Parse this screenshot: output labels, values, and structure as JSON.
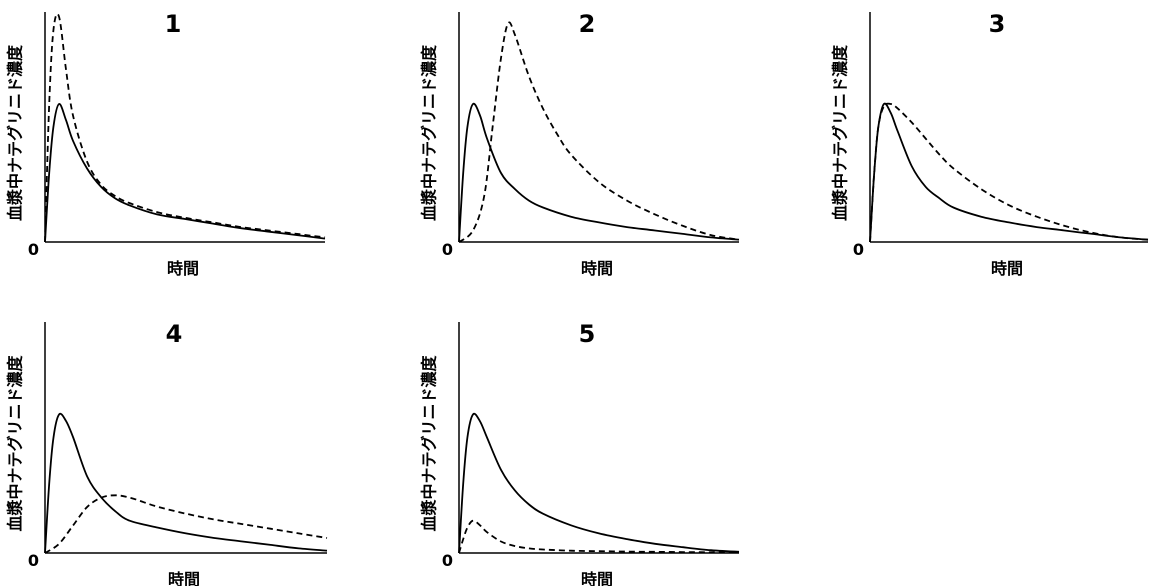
{
  "chart_data": [
    {
      "type": "line",
      "title": "1",
      "xlabel": "時間",
      "ylabel": "血漿中ナテグリニド濃度",
      "origin_label": "0",
      "xlim": [
        0,
        10
      ],
      "ylim": [
        0,
        1.0
      ],
      "series": [
        {
          "style": "solid",
          "x": [
            0,
            0.15,
            0.3,
            0.5,
            0.75,
            1.0,
            1.5,
            2,
            2.5,
            3,
            4,
            5,
            6,
            7,
            8,
            9,
            10
          ],
          "values": [
            0,
            0.3,
            0.5,
            0.6,
            0.53,
            0.44,
            0.32,
            0.24,
            0.19,
            0.16,
            0.12,
            0.1,
            0.08,
            0.06,
            0.045,
            0.03,
            0.015
          ]
        },
        {
          "style": "dashed",
          "x": [
            0,
            0.15,
            0.3,
            0.5,
            0.75,
            1.0,
            1.5,
            2,
            2.5,
            3,
            4,
            5,
            6,
            7,
            8,
            9,
            10
          ],
          "values": [
            0,
            0.6,
            0.92,
            0.98,
            0.75,
            0.55,
            0.35,
            0.25,
            0.2,
            0.17,
            0.13,
            0.105,
            0.085,
            0.065,
            0.05,
            0.035,
            0.02
          ]
        }
      ]
    },
    {
      "type": "line",
      "title": "2",
      "xlabel": "時間",
      "ylabel": "血漿中ナテグリニド濃度",
      "origin_label": "0",
      "xlim": [
        0,
        10
      ],
      "ylim": [
        0,
        1.0
      ],
      "series": [
        {
          "style": "solid",
          "x": [
            0,
            0.15,
            0.3,
            0.5,
            0.75,
            1.0,
            1.5,
            2,
            2.5,
            3,
            4,
            5,
            6,
            7,
            8,
            9,
            10
          ],
          "values": [
            0,
            0.3,
            0.5,
            0.6,
            0.55,
            0.45,
            0.3,
            0.23,
            0.18,
            0.15,
            0.11,
            0.085,
            0.065,
            0.05,
            0.035,
            0.02,
            0.01
          ]
        },
        {
          "style": "dashed",
          "x": [
            0,
            0.5,
            0.9,
            1.2,
            1.5,
            1.75,
            2.0,
            2.5,
            3,
            3.5,
            4,
            5,
            6,
            7,
            8,
            9,
            10
          ],
          "values": [
            0,
            0.05,
            0.2,
            0.5,
            0.8,
            0.95,
            0.9,
            0.72,
            0.58,
            0.47,
            0.38,
            0.26,
            0.18,
            0.12,
            0.07,
            0.03,
            0.01
          ]
        }
      ]
    },
    {
      "type": "line",
      "title": "3",
      "xlabel": "時間",
      "ylabel": "血漿中ナテグリニド濃度",
      "origin_label": "0",
      "xlim": [
        0,
        10
      ],
      "ylim": [
        0,
        1.0
      ],
      "series": [
        {
          "style": "solid",
          "x": [
            0,
            0.15,
            0.3,
            0.5,
            0.75,
            1.0,
            1.5,
            2,
            2.5,
            3,
            4,
            5,
            6,
            7,
            8,
            9,
            10
          ],
          "values": [
            0,
            0.3,
            0.5,
            0.6,
            0.56,
            0.48,
            0.33,
            0.24,
            0.19,
            0.15,
            0.11,
            0.085,
            0.065,
            0.05,
            0.035,
            0.02,
            0.01
          ]
        },
        {
          "style": "dashed",
          "x": [
            0,
            0.15,
            0.3,
            0.5,
            0.75,
            1.0,
            1.5,
            2,
            2.5,
            3,
            4,
            5,
            6,
            7,
            8,
            9,
            10
          ],
          "values": [
            0,
            0.3,
            0.5,
            0.59,
            0.6,
            0.58,
            0.52,
            0.45,
            0.38,
            0.32,
            0.23,
            0.16,
            0.11,
            0.07,
            0.04,
            0.02,
            0.01
          ]
        }
      ]
    },
    {
      "type": "line",
      "title": "4",
      "xlabel": "時間",
      "ylabel": "血漿中ナテグリニド濃度",
      "origin_label": "0",
      "xlim": [
        0,
        10
      ],
      "ylim": [
        0,
        1.0
      ],
      "series": [
        {
          "style": "solid",
          "x": [
            0,
            0.15,
            0.3,
            0.5,
            0.75,
            1.0,
            1.5,
            2,
            2.5,
            3,
            4,
            5,
            6,
            7,
            8,
            9,
            10
          ],
          "values": [
            0,
            0.3,
            0.5,
            0.6,
            0.57,
            0.5,
            0.33,
            0.24,
            0.18,
            0.14,
            0.11,
            0.085,
            0.065,
            0.05,
            0.035,
            0.02,
            0.01
          ]
        },
        {
          "style": "dashed",
          "x": [
            0,
            0.5,
            1.0,
            1.5,
            2.0,
            2.5,
            3,
            3.5,
            4,
            5,
            6,
            7,
            8,
            9,
            10
          ],
          "values": [
            0,
            0.04,
            0.12,
            0.2,
            0.24,
            0.25,
            0.24,
            0.22,
            0.2,
            0.17,
            0.145,
            0.125,
            0.105,
            0.085,
            0.065
          ]
        }
      ]
    },
    {
      "type": "line",
      "title": "5",
      "xlabel": "時間",
      "ylabel": "血漿中ナテグリニド濃度",
      "origin_label": "0",
      "xlim": [
        0,
        10
      ],
      "ylim": [
        0,
        1.0
      ],
      "series": [
        {
          "style": "solid",
          "x": [
            0,
            0.15,
            0.3,
            0.5,
            0.75,
            1.0,
            1.5,
            2,
            2.5,
            3,
            4,
            5,
            6,
            7,
            8,
            9,
            10
          ],
          "values": [
            0,
            0.3,
            0.5,
            0.6,
            0.57,
            0.5,
            0.36,
            0.27,
            0.21,
            0.17,
            0.12,
            0.085,
            0.06,
            0.04,
            0.025,
            0.012,
            0.005
          ]
        },
        {
          "style": "dashed",
          "x": [
            0,
            0.15,
            0.3,
            0.5,
            0.75,
            1.0,
            1.5,
            2,
            2.5,
            3,
            4,
            5,
            6,
            7,
            8,
            9,
            10
          ],
          "values": [
            0,
            0.06,
            0.11,
            0.14,
            0.12,
            0.09,
            0.05,
            0.03,
            0.02,
            0.015,
            0.01,
            0.008,
            0.006,
            0.005,
            0.004,
            0.003,
            0.002
          ]
        }
      ]
    }
  ]
}
